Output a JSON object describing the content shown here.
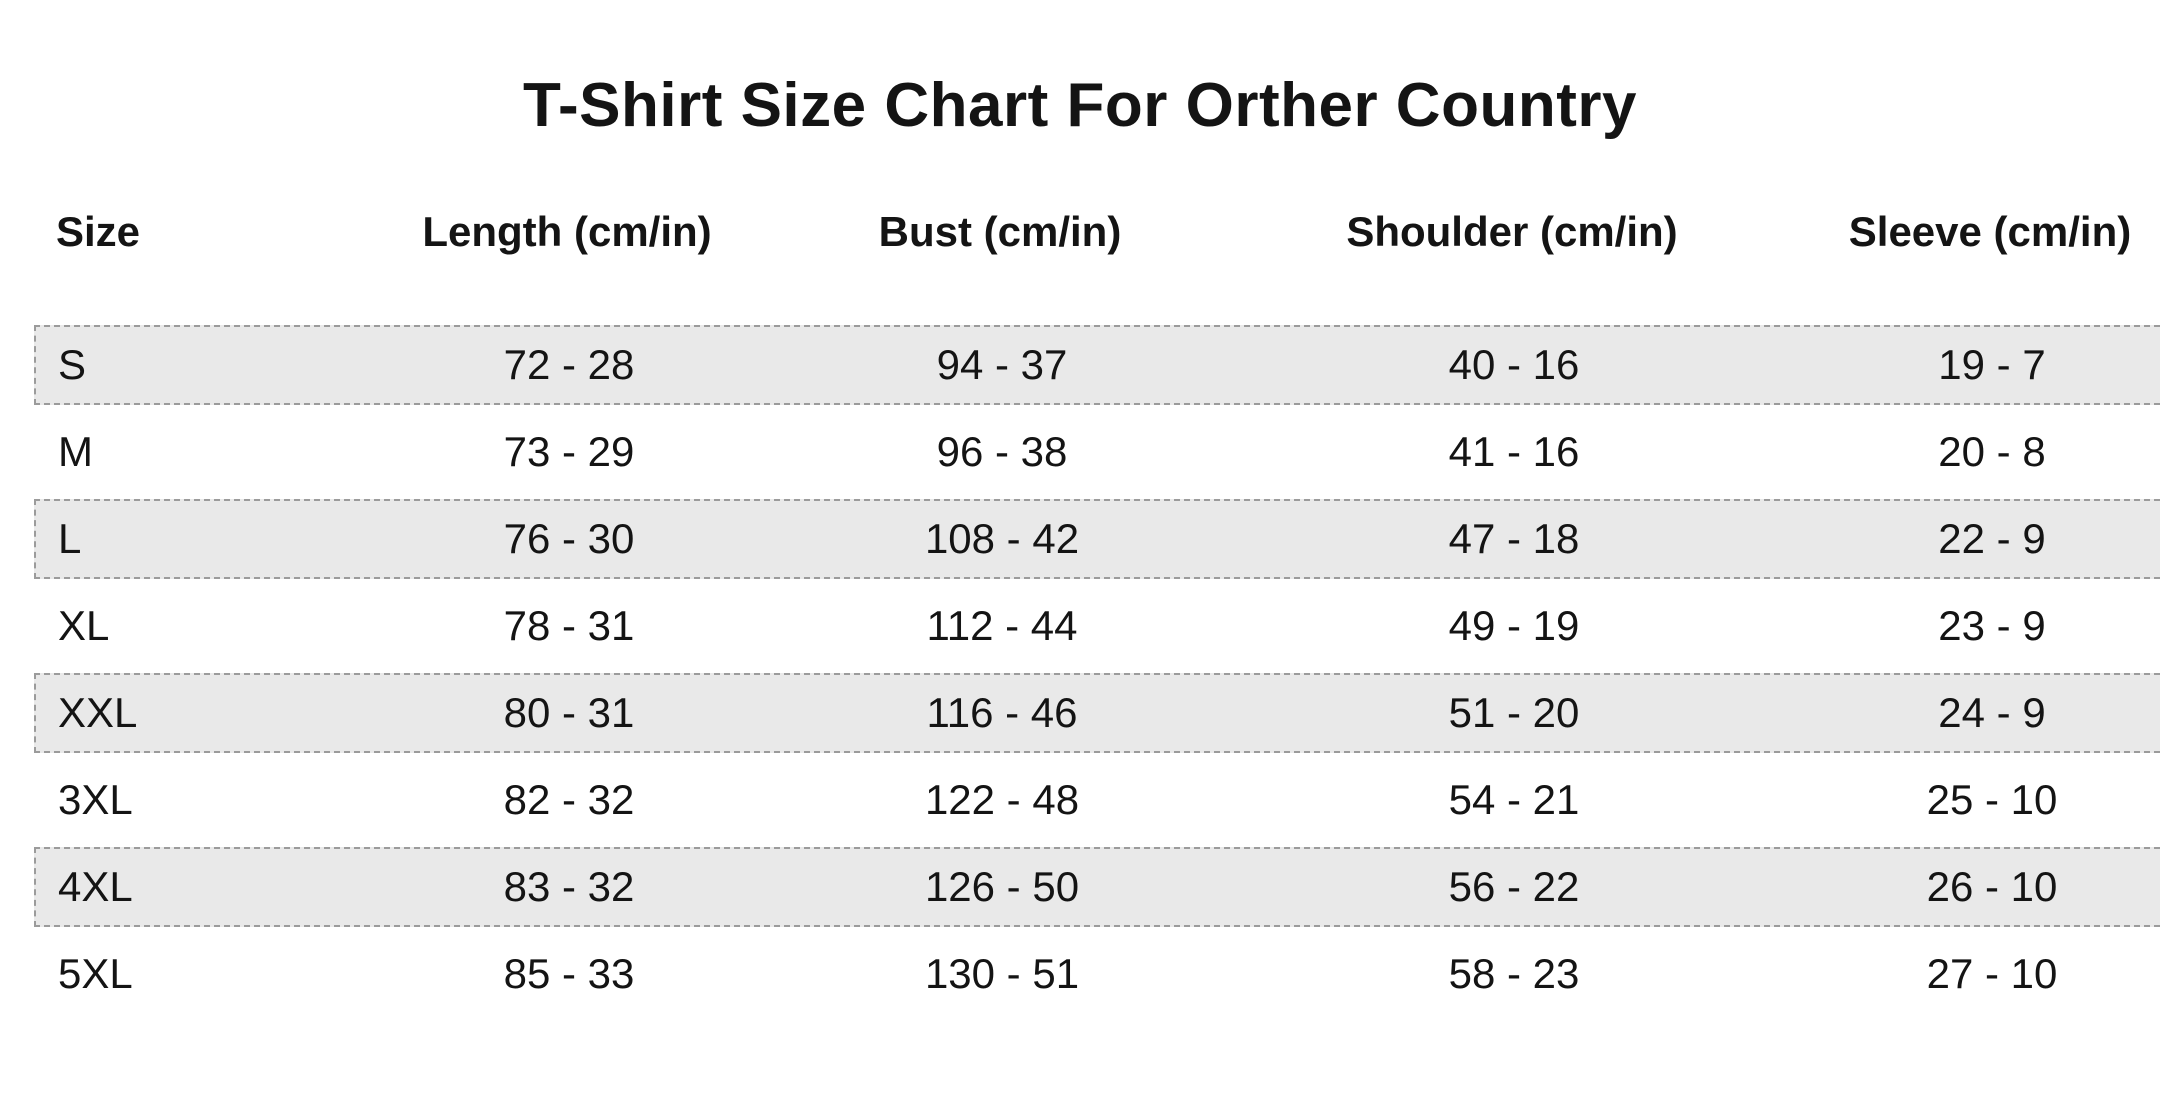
{
  "title": "T-Shirt Size Chart For Orther Country",
  "colors": {
    "background": "#ffffff",
    "row_shade": "#e9e9e9",
    "row_border": "#9b9b9b",
    "text": "#141414"
  },
  "table": {
    "columns": [
      "Size",
      "Length (cm/in)",
      "Bust (cm/in)",
      "Shoulder (cm/in)",
      "Sleeve (cm/in)"
    ],
    "rows": [
      {
        "size": "S",
        "length": "72 - 28",
        "bust": "94 - 37",
        "shoulder": "40 - 16",
        "sleeve": "19 - 7"
      },
      {
        "size": "M",
        "length": "73 - 29",
        "bust": "96 - 38",
        "shoulder": "41 - 16",
        "sleeve": "20 - 8"
      },
      {
        "size": "L",
        "length": "76 - 30",
        "bust": "108 - 42",
        "shoulder": "47 - 18",
        "sleeve": "22 - 9"
      },
      {
        "size": "XL",
        "length": "78 - 31",
        "bust": "112 - 44",
        "shoulder": "49 - 19",
        "sleeve": "23 - 9"
      },
      {
        "size": "XXL",
        "length": "80 - 31",
        "bust": "116 - 46",
        "shoulder": "51 - 20",
        "sleeve": "24 - 9"
      },
      {
        "size": "3XL",
        "length": "82 - 32",
        "bust": "122 - 48",
        "shoulder": "54 - 21",
        "sleeve": "25 - 10"
      },
      {
        "size": "4XL",
        "length": "83 - 32",
        "bust": "126 - 50",
        "shoulder": "56 - 22",
        "sleeve": "26 - 10"
      },
      {
        "size": "5XL",
        "length": "85 - 33",
        "bust": "130 - 51",
        "shoulder": "58 - 23",
        "sleeve": "27 - 10"
      }
    ]
  },
  "chart_data": {
    "type": "table",
    "title": "T-Shirt Size Chart For Orther Country",
    "columns": [
      "Size",
      "Length (cm/in)",
      "Bust (cm/in)",
      "Shoulder (cm/in)",
      "Sleeve (cm/in)"
    ],
    "rows": [
      [
        "S",
        "72 - 28",
        "94 - 37",
        "40 - 16",
        "19 - 7"
      ],
      [
        "M",
        "73 - 29",
        "96 - 38",
        "41 - 16",
        "20 - 8"
      ],
      [
        "L",
        "76 - 30",
        "108 - 42",
        "47 - 18",
        "22 - 9"
      ],
      [
        "XL",
        "78 - 31",
        "112 - 44",
        "49 - 19",
        "23 - 9"
      ],
      [
        "XXL",
        "80 - 31",
        "116 - 46",
        "51 - 20",
        "24 - 9"
      ],
      [
        "3XL",
        "82 - 32",
        "122 - 48",
        "54 - 21",
        "25 - 10"
      ],
      [
        "4XL",
        "83 - 32",
        "126 - 50",
        "56 - 22",
        "26 - 10"
      ],
      [
        "5XL",
        "85 - 33",
        "130 - 51",
        "58 - 23",
        "27 - 10"
      ]
    ]
  }
}
